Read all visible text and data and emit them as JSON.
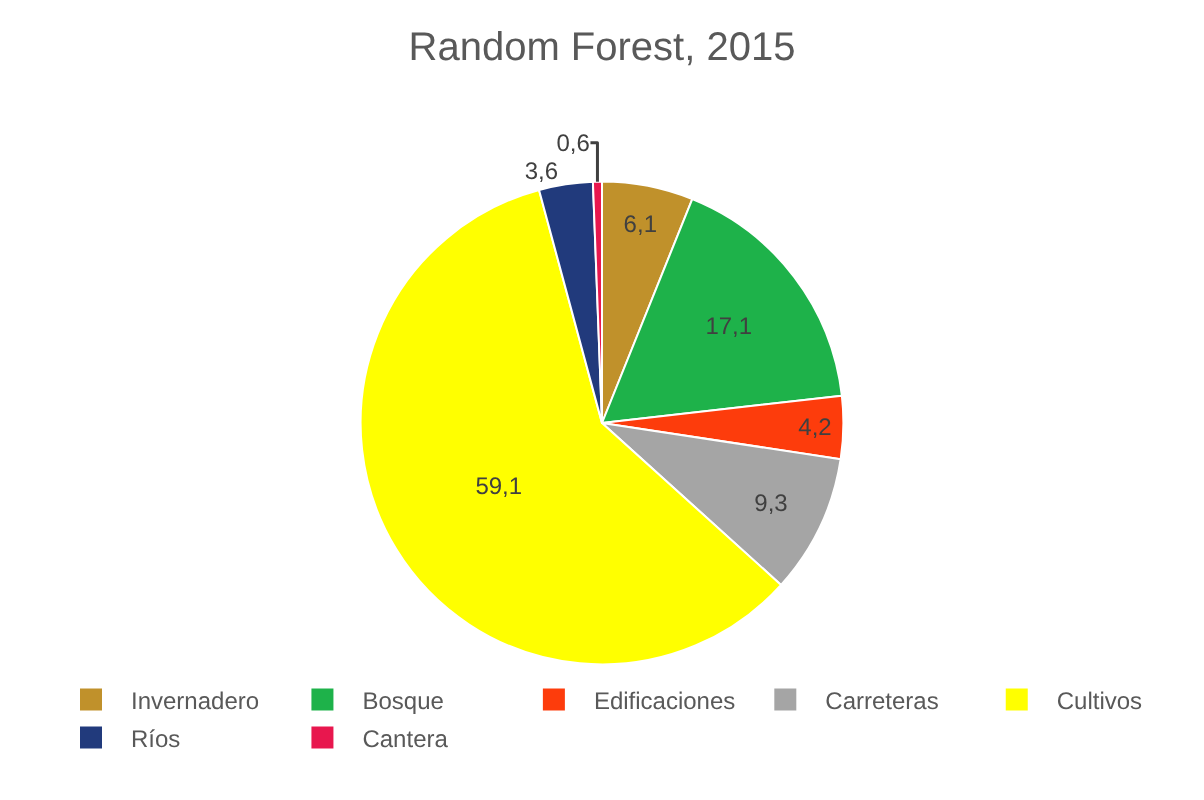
{
  "chart_data": {
    "type": "pie",
    "title": "Random Forest, 2015",
    "categories": [
      "Invernadero",
      "Bosque",
      "Edificaciones",
      "Carreteras",
      "Cultivos",
      "Ríos",
      "Cantera"
    ],
    "values": [
      6.1,
      17.1,
      4.2,
      9.3,
      59.1,
      3.6,
      0.6
    ],
    "value_labels": [
      "6,1",
      "17,1",
      "4,2",
      "9,3",
      "59,1",
      "3,6",
      "0,6"
    ],
    "colors": [
      "#c0912b",
      "#1eb24a",
      "#fd3c0c",
      "#a5a5a5",
      "#ffff00",
      "#213a7c",
      "#e8174e"
    ],
    "legend": "bottom"
  }
}
